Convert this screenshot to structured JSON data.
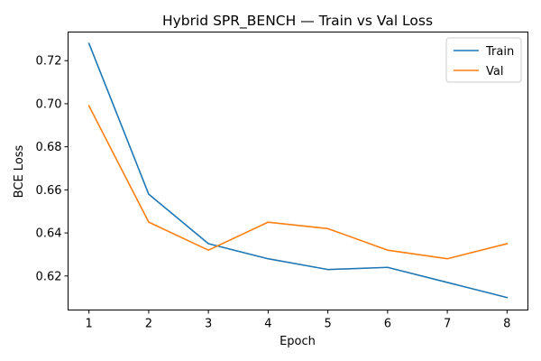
{
  "chart_data": {
    "type": "line",
    "title": "Hybrid SPR_BENCH — Train vs Val Loss",
    "xlabel": "Epoch",
    "ylabel": "BCE Loss",
    "x": [
      1,
      2,
      3,
      4,
      5,
      6,
      7,
      8
    ],
    "xlim": [
      0.65,
      8.35
    ],
    "ylim": [
      0.6042,
      0.7333
    ],
    "xticks": [
      1,
      2,
      3,
      4,
      5,
      6,
      7,
      8
    ],
    "yticks": [
      0.62,
      0.64,
      0.66,
      0.68,
      0.7,
      0.72
    ],
    "grid": false,
    "legend_position": "upper-right",
    "series": [
      {
        "name": "Train",
        "color": "#1f77b4",
        "values": [
          0.728,
          0.658,
          0.635,
          0.628,
          0.623,
          0.624,
          0.617,
          0.61
        ]
      },
      {
        "name": "Val",
        "color": "#ff7f0e",
        "values": [
          0.699,
          0.645,
          0.632,
          0.645,
          0.642,
          0.632,
          0.628,
          0.635
        ]
      }
    ]
  }
}
